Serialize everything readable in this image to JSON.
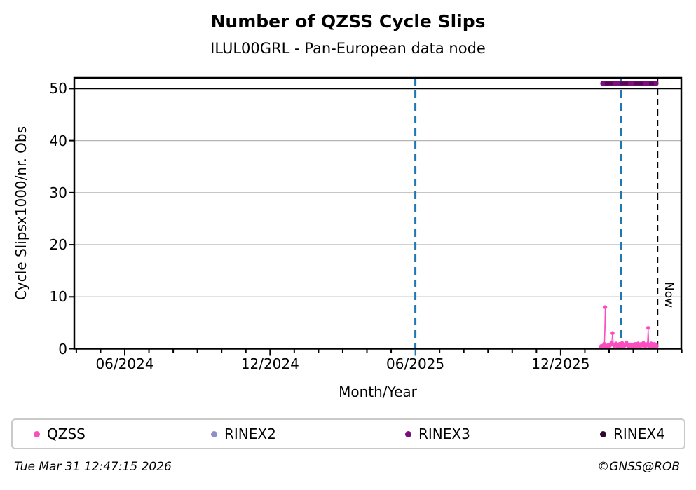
{
  "title": "Number of QZSS Cycle Slips",
  "subtitle": "ILUL00GRL - Pan-European data node",
  "footer": {
    "timestamp": "Tue Mar 31 12:47:15 2026",
    "credit": "©GNSS@ROB"
  },
  "chart_data": {
    "type": "scatter",
    "title": "Number of QZSS Cycle Slips",
    "subtitle": "ILUL00GRL - Pan-European data node",
    "xlabel": "Month/Year",
    "ylabel": "Cycle Slipsx1000/nr. Obs",
    "ylim": [
      0,
      52
    ],
    "yticks": [
      0,
      10,
      20,
      30,
      40,
      50
    ],
    "grid": "horizontal-gray",
    "hline_y": 50,
    "x_range_months": {
      "start": "2024-04",
      "end": "2026-05"
    },
    "xticks": [
      {
        "date": "2024-06-01",
        "label": "06/2024"
      },
      {
        "date": "2024-12-01",
        "label": "12/2024"
      },
      {
        "date": "2025-06-01",
        "label": "06/2025"
      },
      {
        "date": "2025-12-01",
        "label": "12/2025"
      }
    ],
    "vlines": [
      {
        "name": "event-line-1",
        "date": "2025-06-01",
        "color": "#1f77b4",
        "style": "dashed"
      },
      {
        "name": "event-line-2",
        "date": "2026-02-15",
        "color": "#1f77b4",
        "style": "dashed"
      },
      {
        "name": "now-line",
        "date": "2026-04-01",
        "color": "#000000",
        "style": "dashed",
        "label": "Now"
      }
    ],
    "now_label": "Now",
    "legend": {
      "position": "bottom",
      "entries": [
        {
          "label": "QZSS",
          "color": "#fb4fc0"
        },
        {
          "label": "RINEX2",
          "color": "#8e8ecb"
        },
        {
          "label": "RINEX3",
          "color": "#7a0e7a"
        },
        {
          "label": "RINEX4",
          "color": "#2a0b2e"
        }
      ]
    },
    "series": [
      {
        "name": "QZSS",
        "type": "line+marker",
        "color": "#fb4fc0",
        "points": [
          [
            "2026-01-21",
            0.3
          ],
          [
            "2026-01-22",
            0.5
          ],
          [
            "2026-01-23",
            0.2
          ],
          [
            "2026-01-24",
            0.6
          ],
          [
            "2026-01-25",
            0.4
          ],
          [
            "2026-01-26",
            0.9
          ],
          [
            "2026-01-27",
            8.0
          ],
          [
            "2026-01-28",
            0.6
          ],
          [
            "2026-01-29",
            0.3
          ],
          [
            "2026-01-30",
            0.5
          ],
          [
            "2026-01-31",
            0.7
          ],
          [
            "2026-02-01",
            0.4
          ],
          [
            "2026-02-02",
            0.6
          ],
          [
            "2026-02-03",
            0.9
          ],
          [
            "2026-02-04",
            1.2
          ],
          [
            "2026-02-05",
            3.0
          ],
          [
            "2026-02-06",
            0.8
          ],
          [
            "2026-02-07",
            0.5
          ],
          [
            "2026-02-08",
            0.7
          ],
          [
            "2026-02-09",
            1.0
          ],
          [
            "2026-02-10",
            0.6
          ],
          [
            "2026-02-11",
            0.4
          ],
          [
            "2026-02-12",
            0.7
          ],
          [
            "2026-02-13",
            0.9
          ],
          [
            "2026-02-14",
            0.5
          ],
          [
            "2026-02-15",
            0.8
          ],
          [
            "2026-02-16",
            1.1
          ],
          [
            "2026-02-17",
            0.6
          ],
          [
            "2026-02-18",
            0.4
          ],
          [
            "2026-02-19",
            0.6
          ],
          [
            "2026-02-20",
            0.9
          ],
          [
            "2026-02-21",
            1.2
          ],
          [
            "2026-02-22",
            0.8
          ],
          [
            "2026-02-23",
            0.5
          ],
          [
            "2026-02-24",
            0.3
          ],
          [
            "2026-02-25",
            0.6
          ],
          [
            "2026-02-26",
            0.8
          ],
          [
            "2026-02-27",
            0.5
          ],
          [
            "2026-02-28",
            0.7
          ],
          [
            "2026-03-01",
            0.4
          ],
          [
            "2026-03-02",
            0.6
          ],
          [
            "2026-03-03",
            0.9
          ],
          [
            "2026-03-04",
            0.7
          ],
          [
            "2026-03-05",
            0.5
          ],
          [
            "2026-03-06",
            0.8
          ],
          [
            "2026-03-07",
            1.0
          ],
          [
            "2026-03-08",
            0.6
          ],
          [
            "2026-03-09",
            0.4
          ],
          [
            "2026-03-10",
            0.7
          ],
          [
            "2026-03-11",
            0.9
          ],
          [
            "2026-03-12",
            0.6
          ],
          [
            "2026-03-13",
            0.8
          ],
          [
            "2026-03-14",
            1.1
          ],
          [
            "2026-03-15",
            0.7
          ],
          [
            "2026-03-16",
            0.5
          ],
          [
            "2026-03-17",
            0.8
          ],
          [
            "2026-03-18",
            0.6
          ],
          [
            "2026-03-19",
            0.9
          ],
          [
            "2026-03-20",
            4.0
          ],
          [
            "2026-03-21",
            0.7
          ],
          [
            "2026-03-22",
            0.5
          ],
          [
            "2026-03-23",
            0.8
          ],
          [
            "2026-03-24",
            1.0
          ],
          [
            "2026-03-25",
            0.6
          ],
          [
            "2026-03-26",
            0.4
          ],
          [
            "2026-03-27",
            0.7
          ],
          [
            "2026-03-28",
            0.9
          ],
          [
            "2026-03-29",
            0.6
          ],
          [
            "2026-03-30",
            0.8
          ],
          [
            "2026-03-31",
            0.5
          ]
        ]
      },
      {
        "name": "RINEX3",
        "type": "availability-bar",
        "color": "#7d0f7d",
        "dash_color": "#540854",
        "bar": {
          "start": "2026-01-24",
          "end": "2026-03-30",
          "y": 51
        }
      }
    ]
  }
}
